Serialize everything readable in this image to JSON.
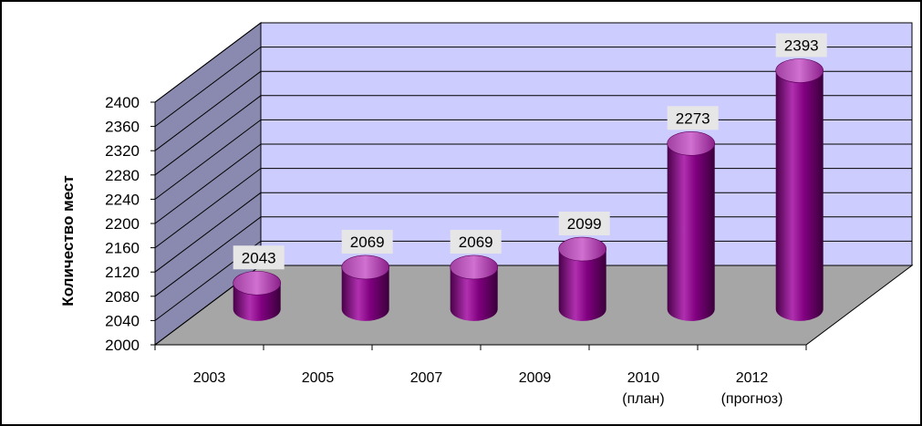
{
  "chart_data": {
    "type": "bar",
    "style": "3d-cylinder",
    "title": "",
    "xlabel": "",
    "ylabel": "Количество мест",
    "ylim": [
      2000,
      2400
    ],
    "ytick_step": 40,
    "yticks": [
      "2000",
      "2040",
      "2080",
      "2120",
      "2160",
      "2200",
      "2240",
      "2280",
      "2320",
      "2360",
      "2400"
    ],
    "categories": [
      {
        "label": "2003",
        "sublabel": ""
      },
      {
        "label": "2005",
        "sublabel": ""
      },
      {
        "label": "2007",
        "sublabel": ""
      },
      {
        "label": "2009",
        "sublabel": ""
      },
      {
        "label": "2010",
        "sublabel": "(план)"
      },
      {
        "label": "2012",
        "sublabel": "(прогноз)"
      }
    ],
    "values": [
      2043,
      2069,
      2069,
      2099,
      2273,
      2393
    ],
    "data_labels": [
      "2043",
      "2069",
      "2069",
      "2099",
      "2273",
      "2393"
    ],
    "grid": true,
    "legend": "none",
    "colors": {
      "back_wall": "#CCCCFF",
      "side_wall": "#8A8AB0",
      "floor": "#A6A6A6",
      "bar": "#800080",
      "bar_highlight": "#C040C0",
      "bar_dark": "#4A004A",
      "label_box": "#E6E6E6"
    }
  }
}
